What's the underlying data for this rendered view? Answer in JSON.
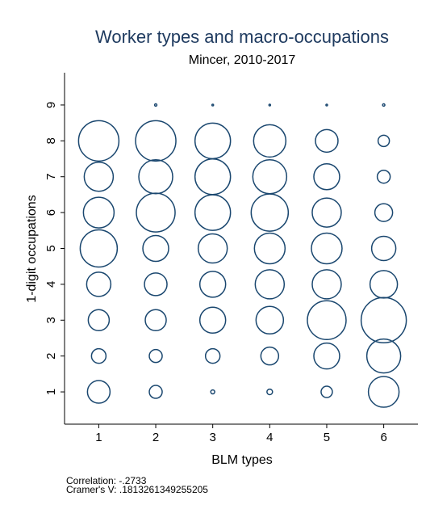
{
  "chart_data": {
    "type": "scatter",
    "title": "Worker types and macro-occupations",
    "subtitle": "Mincer, 2010-2017",
    "xlabel": "BLM types",
    "ylabel": "1-digit occupations",
    "annotations": [
      "Correlation: -.2733",
      "Cramer's V: .1813261349255205"
    ],
    "xlim": [
      0.4,
      6.6
    ],
    "ylim": [
      0.1,
      9.9
    ],
    "xticks": [
      1,
      2,
      3,
      4,
      5,
      6
    ],
    "yticks": [
      1,
      2,
      3,
      4,
      5,
      6,
      7,
      8,
      9
    ],
    "series": [
      {
        "color": "#1a476f",
        "x": [
          1,
          2,
          3,
          4,
          5,
          6,
          1,
          2,
          3,
          4,
          5,
          6,
          1,
          2,
          3,
          4,
          5,
          6,
          1,
          2,
          3,
          4,
          5,
          6,
          1,
          2,
          3,
          4,
          5,
          6,
          1,
          2,
          3,
          4,
          5,
          6,
          1,
          2,
          3,
          4,
          5,
          6,
          1,
          2,
          3,
          4,
          5,
          6,
          2,
          3,
          4,
          5,
          6
        ],
        "y": [
          1,
          1,
          1,
          1,
          1,
          1,
          2,
          2,
          2,
          2,
          2,
          2,
          3,
          3,
          3,
          3,
          3,
          3,
          4,
          4,
          4,
          4,
          4,
          4,
          5,
          5,
          5,
          5,
          5,
          5,
          6,
          6,
          6,
          6,
          6,
          6,
          7,
          7,
          7,
          7,
          7,
          7,
          8,
          8,
          8,
          8,
          8,
          8,
          9,
          9,
          9,
          9,
          9
        ],
        "sizes": [
          196,
          64,
          6,
          12,
          49,
          361,
          81,
          64,
          81,
          121,
          256,
          441,
          169,
          169,
          256,
          289,
          576,
          784,
          225,
          196,
          256,
          324,
          324,
          289,
          529,
          256,
          324,
          361,
          361,
          225,
          361,
          576,
          484,
          529,
          324,
          121,
          324,
          441,
          484,
          441,
          256,
          64,
          625,
          625,
          484,
          400,
          196,
          49,
          2,
          1,
          1,
          1,
          2
        ]
      }
    ]
  }
}
